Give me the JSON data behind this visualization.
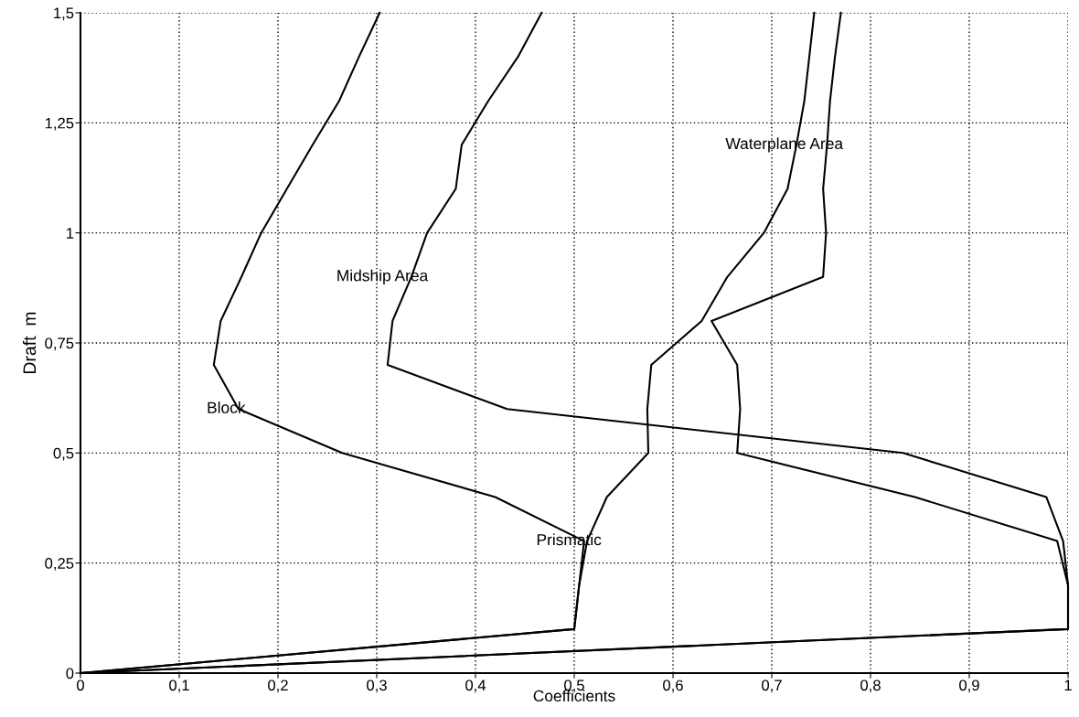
{
  "chart_data": {
    "type": "line",
    "xlabel": "Coefficients",
    "ylabel": "Draft  m",
    "xlim": [
      0,
      1
    ],
    "xticks": [
      0,
      {
        "value": 0.1,
        "label": "0,1"
      },
      {
        "value": 0.2,
        "label": "0,2"
      },
      {
        "value": 0.3,
        "label": "0,3"
      },
      {
        "value": 0.4,
        "label": "0,4"
      },
      {
        "value": 0.5,
        "label": "0,5"
      },
      {
        "value": 0.6,
        "label": "0,6"
      },
      {
        "value": 0.7,
        "label": "0,7"
      },
      {
        "value": 0.8,
        "label": "0,8"
      },
      {
        "value": 0.9,
        "label": "0,9"
      },
      1
    ],
    "ylim": [
      0,
      1.5
    ],
    "yticks": [
      0,
      {
        "value": 0.25,
        "label": "0,25"
      },
      {
        "value": 0.5,
        "label": "0,5"
      },
      {
        "value": 0.75,
        "label": "0,75"
      },
      1,
      {
        "value": 1.25,
        "label": "1,25"
      },
      {
        "value": 1.5,
        "label": "1,5"
      }
    ],
    "grid": true,
    "line_style": "solid",
    "marker": "none",
    "series": [
      {
        "name": "Block",
        "color": "#000000",
        "x": [
          0,
          0.5,
          0.505,
          0.51,
          0.42,
          0.265,
          0.16,
          0.135,
          0.142,
          0.163,
          0.183,
          0.209,
          0.235,
          0.262,
          0.282,
          0.303
        ],
        "values": [
          0,
          0.1,
          0.2,
          0.3,
          0.4,
          0.5,
          0.6,
          0.7,
          0.8,
          0.9,
          1.0,
          1.1,
          1.2,
          1.3,
          1.4,
          1.5
        ]
      },
      {
        "name": "Midship Area",
        "color": "#000000",
        "x": [
          0,
          1,
          1,
          0.995,
          0.978,
          0.833,
          0.432,
          0.311,
          0.316,
          0.335,
          0.351,
          0.38,
          0.386,
          0.413,
          0.443,
          0.467
        ],
        "values": [
          0,
          0.1,
          0.2,
          0.3,
          0.4,
          0.5,
          0.6,
          0.7,
          0.8,
          0.9,
          1.0,
          1.1,
          1.2,
          1.3,
          1.4,
          1.5
        ]
      },
      {
        "name": "Waterplane Area",
        "color": "#000000",
        "x": [
          0,
          1,
          1,
          0.989,
          0.845,
          0.665,
          0.668,
          0.665,
          0.639,
          0.752,
          0.755,
          0.752,
          0.756,
          0.759,
          0.764,
          0.77
        ],
        "values": [
          0,
          0.1,
          0.2,
          0.3,
          0.4,
          0.5,
          0.6,
          0.7,
          0.8,
          0.9,
          1.0,
          1.1,
          1.2,
          1.3,
          1.4,
          1.5
        ]
      },
      {
        "name": "Prismatic",
        "color": "#000000",
        "x": [
          0,
          0.5,
          0.505,
          0.513,
          0.533,
          0.575,
          0.574,
          0.578,
          0.629,
          0.655,
          0.692,
          0.716,
          0.725,
          0.733,
          0.738,
          0.743
        ],
        "values": [
          0,
          0.1,
          0.2,
          0.3,
          0.4,
          0.5,
          0.6,
          0.7,
          0.8,
          0.9,
          1.0,
          1.1,
          1.2,
          1.3,
          1.4,
          1.5
        ]
      }
    ]
  }
}
